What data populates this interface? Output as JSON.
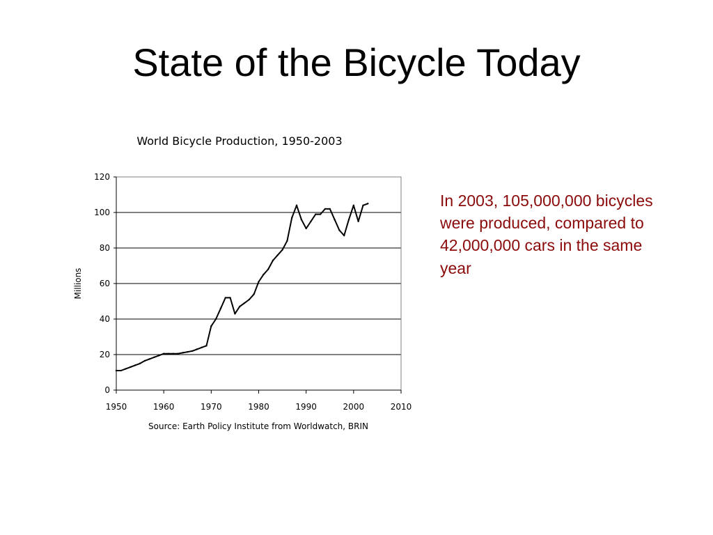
{
  "slide": {
    "title": "State of the Bicycle Today",
    "note": "In 2003, 105,000,000 bicycles were produced, compared to 42,000,000 cars in the same year",
    "note_color": "#8b0a0a"
  },
  "chart_data": {
    "type": "line",
    "title": "World Bicycle Production, 1950-2003",
    "ylabel": "Millions",
    "xlabel": "",
    "source": "Source: Earth Policy Institute from Worldwatch, BRIN",
    "xlim": [
      1950,
      2010
    ],
    "ylim": [
      0,
      120
    ],
    "x_ticks": [
      1950,
      1960,
      1970,
      1980,
      1990,
      2000,
      2010
    ],
    "y_ticks": [
      0,
      20,
      40,
      60,
      80,
      100,
      120
    ],
    "grid": "horizontal",
    "legend": "none",
    "series_color": "#000000",
    "x": [
      1950,
      1951,
      1952,
      1953,
      1954,
      1955,
      1956,
      1957,
      1958,
      1959,
      1960,
      1961,
      1962,
      1963,
      1964,
      1965,
      1966,
      1967,
      1968,
      1969,
      1970,
      1971,
      1972,
      1973,
      1974,
      1975,
      1976,
      1977,
      1978,
      1979,
      1980,
      1981,
      1982,
      1983,
      1984,
      1985,
      1986,
      1987,
      1988,
      1989,
      1990,
      1991,
      1992,
      1993,
      1994,
      1995,
      1996,
      1997,
      1998,
      1999,
      2000,
      2001,
      2002,
      2003
    ],
    "y": [
      11,
      11,
      12,
      13,
      14,
      15,
      16.5,
      17.5,
      18.5,
      19.5,
      20.5,
      20.5,
      20.5,
      20.5,
      21,
      21.5,
      22,
      23,
      24,
      25,
      36,
      40,
      46,
      52,
      52,
      43,
      47,
      49,
      51,
      54,
      61,
      65,
      68,
      73,
      76,
      79,
      84,
      97,
      104,
      96,
      91,
      95,
      99,
      99,
      102,
      102,
      96,
      90,
      87,
      96,
      104,
      95,
      104,
      105
    ]
  }
}
